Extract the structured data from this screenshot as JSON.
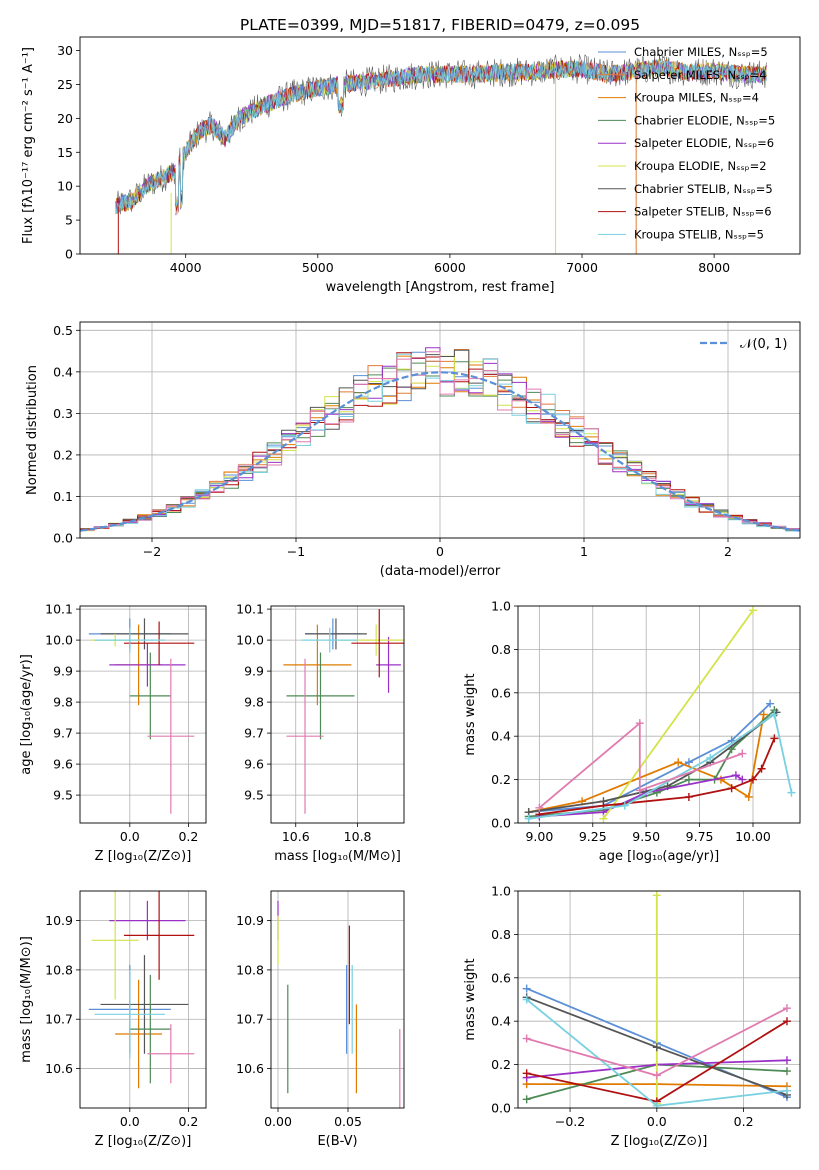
{
  "figure": {
    "title": "PLATE=0399, MJD=51817, FIBERID=0479, z=0.095"
  },
  "colors": {
    "Chabrier MILES": "#5b8fd6",
    "Salpeter MILES": "#e07b39",
    "Kroupa MILES": "#e07b00",
    "Chabrier ELODIE": "#4e8a55",
    "Salpeter ELODIE": "#9b30c8",
    "Kroupa ELODIE": "#d4e34a",
    "Chabrier STELIB": "#555555",
    "Salpeter STELIB": "#b01010",
    "Kroupa STELIB": "#78d0e0",
    "pink": "#e07bb0",
    "gauss": "#5b8fd6"
  },
  "chart_data": [
    {
      "id": "spectrum",
      "type": "line",
      "title": "PLATE=0399, MJD=51817, FIBERID=0479, z=0.095",
      "xlabel": "wavelength [Angstrom, rest frame]",
      "ylabel": "Flux [fλ10⁻¹⁷ erg cm⁻² s⁻¹ A⁻¹]",
      "xlim": [
        3200,
        8650
      ],
      "ylim": [
        0,
        32
      ],
      "xticks": [
        4000,
        5000,
        6000,
        7000,
        8000
      ],
      "yticks": [
        0,
        5,
        10,
        15,
        20,
        25,
        30
      ],
      "legend_position": "right",
      "legend": [
        {
          "label": "Chabrier MILES, Nₛₛₚ=5",
          "color": "#5b8fd6"
        },
        {
          "label": "Salpeter MILES, Nₛₛₚ=4",
          "color": "#e07b39"
        },
        {
          "label": "Kroupa MILES, Nₛₛₚ=4",
          "color": "#e07b00"
        },
        {
          "label": "Chabrier ELODIE, Nₛₛₚ=5",
          "color": "#4e8a55"
        },
        {
          "label": "Salpeter ELODIE, Nₛₛₚ=6",
          "color": "#9b30c8"
        },
        {
          "label": "Kroupa ELODIE, Nₛₛₚ=2",
          "color": "#d4e34a"
        },
        {
          "label": "Chabrier STELIB, Nₛₛₚ=5",
          "color": "#555555"
        },
        {
          "label": "Salpeter STELIB, Nₛₛₚ=6",
          "color": "#b01010"
        },
        {
          "label": "Kroupa STELIB, Nₛₛₚ=5",
          "color": "#78d0e0"
        }
      ],
      "continuum": {
        "x": [
          3470,
          3600,
          3700,
          3800,
          3900,
          4000,
          4100,
          4200,
          4300,
          4400,
          4600,
          4800,
          5000,
          5200,
          5400,
          5600,
          5800,
          6000,
          6200,
          6400,
          6600,
          6800,
          7000,
          7200,
          7400,
          7600,
          7800,
          8000,
          8200,
          8400
        ],
        "y": [
          7,
          8,
          10,
          11,
          12,
          15,
          18,
          19,
          17,
          20,
          22,
          23.5,
          24.5,
          25,
          25.5,
          26,
          26.5,
          26.5,
          26.5,
          26.8,
          26.8,
          27.2,
          27.3,
          26.5,
          27,
          27.5,
          26.8,
          27,
          26.5,
          26.5
        ]
      }
    },
    {
      "id": "residuals",
      "type": "histogram",
      "xlabel": "(data-model)/error",
      "ylabel": "Normed distribution",
      "xlim": [
        -2.5,
        2.5
      ],
      "ylim": [
        0,
        0.52
      ],
      "xticks": [
        -2,
        -1,
        0,
        1,
        2
      ],
      "yticks": [
        0.0,
        0.1,
        0.2,
        0.3,
        0.4,
        0.5
      ],
      "grid": true,
      "legend_position": "top-right",
      "legend": [
        {
          "label": "𝒩(0, 1)",
          "color": "#5b8fd6",
          "style": "dashed"
        }
      ],
      "bins_start": -2.5,
      "bin_width": 0.1
    },
    {
      "id": "age-vs-Z",
      "type": "errorbar",
      "xlabel": "Z [log₁₀(Z/Z⊙)]",
      "ylabel": "age  [log₁₀(age/yr)]",
      "xlim": [
        -0.17,
        0.26
      ],
      "ylim": [
        9.41,
        10.11
      ],
      "xticks": [
        0.0,
        0.2
      ],
      "yticks": [
        9.5,
        9.6,
        9.7,
        9.8,
        9.9,
        10.0,
        10.1
      ],
      "grid": true,
      "points": [
        {
          "x": 0.0,
          "y": 10.02,
          "xerr": 0.14,
          "yerr": 0.05,
          "color": "#5b8fd6"
        },
        {
          "x": 0.03,
          "y": 9.92,
          "xerr": 0.08,
          "yerr": 0.13,
          "color": "#e07b00"
        },
        {
          "x": 0.05,
          "y": 10.02,
          "xerr": 0.15,
          "yerr": 0.05,
          "color": "#555555"
        },
        {
          "x": 0.07,
          "y": 9.82,
          "xerr": 0.07,
          "yerr": 0.14,
          "color": "#4e8a55"
        },
        {
          "x": 0.06,
          "y": 9.92,
          "xerr": 0.13,
          "yerr": 0.07,
          "color": "#9b30c8"
        },
        {
          "x": -0.05,
          "y": 10.0,
          "xerr": 0.08,
          "yerr": 0.02,
          "color": "#d4e34a"
        },
        {
          "x": 0.1,
          "y": 9.99,
          "xerr": 0.12,
          "yerr": 0.07,
          "color": "#b01010"
        },
        {
          "x": 0.0,
          "y": 10.0,
          "xerr": 0.12,
          "yerr": 0.04,
          "color": "#78d0e0"
        },
        {
          "x": 0.14,
          "y": 9.69,
          "xerr": 0.08,
          "yerr": 0.25,
          "color": "#e07bb0"
        }
      ]
    },
    {
      "id": "age-vs-mass",
      "type": "errorbar",
      "xlabel": "mass [log₁₀(M/M⊙)]",
      "ylabel": "",
      "xlim": [
        10.52,
        10.95
      ],
      "ylim": [
        9.41,
        10.11
      ],
      "xticks": [
        10.6,
        10.8
      ],
      "yticks": [
        9.5,
        9.6,
        9.7,
        9.8,
        9.9,
        10.0,
        10.1
      ],
      "grid": true,
      "points": [
        {
          "x": 10.72,
          "y": 10.02,
          "xerr": 0.09,
          "yerr": 0.05,
          "color": "#5b8fd6"
        },
        {
          "x": 10.67,
          "y": 9.92,
          "xerr": 0.11,
          "yerr": 0.13,
          "color": "#e07b00"
        },
        {
          "x": 10.73,
          "y": 10.02,
          "xerr": 0.1,
          "yerr": 0.05,
          "color": "#555555"
        },
        {
          "x": 10.68,
          "y": 9.82,
          "xerr": 0.11,
          "yerr": 0.14,
          "color": "#4e8a55"
        },
        {
          "x": 10.9,
          "y": 9.92,
          "xerr": 0.04,
          "yerr": 0.09,
          "color": "#9b30c8"
        },
        {
          "x": 10.86,
          "y": 10.0,
          "xerr": 0.12,
          "yerr": 0.05,
          "color": "#d4e34a"
        },
        {
          "x": 10.87,
          "y": 9.99,
          "xerr": 0.09,
          "yerr": 0.11,
          "color": "#b01010"
        },
        {
          "x": 10.71,
          "y": 10.0,
          "xerr": 0.09,
          "yerr": 0.04,
          "color": "#78d0e0"
        },
        {
          "x": 10.63,
          "y": 9.69,
          "xerr": 0.06,
          "yerr": 0.25,
          "color": "#e07bb0"
        }
      ]
    },
    {
      "id": "weight-vs-age",
      "type": "line",
      "xlabel": "age  [log₁₀(age/yr)]",
      "ylabel": "mass weight",
      "xlim": [
        8.9,
        10.22
      ],
      "ylim": [
        0,
        1.0
      ],
      "xticks": [
        9.0,
        9.25,
        9.5,
        9.75,
        10.0
      ],
      "yticks": [
        0.0,
        0.2,
        0.4,
        0.6,
        0.8,
        1.0
      ],
      "grid": true,
      "series": [
        {
          "color": "#5b8fd6",
          "x": [
            8.95,
            9.3,
            9.7,
            9.9,
            10.08
          ],
          "y": [
            0.05,
            0.08,
            0.28,
            0.38,
            0.55
          ]
        },
        {
          "color": "#e07b00",
          "x": [
            8.95,
            9.2,
            9.65,
            9.85,
            9.98,
            10.05
          ],
          "y": [
            0.05,
            0.1,
            0.28,
            0.2,
            0.12,
            0.5
          ]
        },
        {
          "color": "#4e8a55",
          "x": [
            8.95,
            9.3,
            9.55,
            9.7,
            9.82,
            9.9,
            10.1
          ],
          "y": [
            0.03,
            0.06,
            0.14,
            0.2,
            0.2,
            0.34,
            0.52
          ]
        },
        {
          "color": "#9b30c8",
          "x": [
            9.0,
            9.3,
            9.5,
            9.92,
            9.95
          ],
          "y": [
            0.03,
            0.05,
            0.14,
            0.22,
            0.2
          ]
        },
        {
          "color": "#d4e34a",
          "x": [
            9.3,
            10.0
          ],
          "y": [
            0.02,
            0.98
          ]
        },
        {
          "color": "#555555",
          "x": [
            8.95,
            9.3,
            9.6,
            9.8,
            10.11
          ],
          "y": [
            0.05,
            0.1,
            0.17,
            0.28,
            0.51
          ]
        },
        {
          "color": "#b01010",
          "x": [
            9.0,
            9.3,
            9.7,
            9.9,
            10.0,
            10.04,
            10.1
          ],
          "y": [
            0.04,
            0.08,
            0.12,
            0.16,
            0.2,
            0.25,
            0.39
          ]
        },
        {
          "color": "#78d0e0",
          "x": [
            8.95,
            9.4,
            9.8,
            10.1,
            10.18
          ],
          "y": [
            0.02,
            0.08,
            0.3,
            0.5,
            0.14
          ]
        },
        {
          "color": "#e07bb0",
          "x": [
            9.0,
            9.47,
            9.47,
            9.95
          ],
          "y": [
            0.07,
            0.46,
            0.15,
            0.32
          ]
        }
      ]
    },
    {
      "id": "mass-vs-Z",
      "type": "errorbar",
      "xlabel": "Z [log₁₀(Z/Z⊙)]",
      "ylabel": "mass [log₁₀(M/M⊙)]",
      "xlim": [
        -0.17,
        0.26
      ],
      "ylim": [
        10.52,
        10.96
      ],
      "xticks": [
        0.0,
        0.2
      ],
      "yticks": [
        10.6,
        10.7,
        10.8,
        10.9
      ],
      "grid": true,
      "points": [
        {
          "x": 0.0,
          "y": 10.72,
          "xerr": 0.14,
          "yerr": 0.09,
          "color": "#5b8fd6"
        },
        {
          "x": 0.03,
          "y": 10.67,
          "xerr": 0.08,
          "yerr": 0.11,
          "color": "#e07b00"
        },
        {
          "x": 0.05,
          "y": 10.73,
          "xerr": 0.15,
          "yerr": 0.1,
          "color": "#555555"
        },
        {
          "x": 0.07,
          "y": 10.68,
          "xerr": 0.07,
          "yerr": 0.11,
          "color": "#4e8a55"
        },
        {
          "x": 0.06,
          "y": 10.9,
          "xerr": 0.13,
          "yerr": 0.04,
          "color": "#9b30c8"
        },
        {
          "x": -0.05,
          "y": 10.86,
          "xerr": 0.08,
          "yerr": 0.12,
          "color": "#d4e34a"
        },
        {
          "x": 0.1,
          "y": 10.87,
          "xerr": 0.12,
          "yerr": 0.09,
          "color": "#b01010"
        },
        {
          "x": 0.0,
          "y": 10.71,
          "xerr": 0.12,
          "yerr": 0.09,
          "color": "#78d0e0"
        },
        {
          "x": 0.14,
          "y": 10.63,
          "xerr": 0.08,
          "yerr": 0.06,
          "color": "#e07bb0"
        }
      ]
    },
    {
      "id": "mass-vs-ebv",
      "type": "errorbar",
      "xlabel": "E(B-V)",
      "ylabel": "",
      "xlim": [
        -0.005,
        0.09
      ],
      "ylim": [
        10.52,
        10.96
      ],
      "xticks": [
        0.0,
        0.05
      ],
      "yticks": [
        10.6,
        10.7,
        10.8,
        10.9
      ],
      "grid": true,
      "points": [
        {
          "x": 0.049,
          "y": 10.72,
          "xerr": 0,
          "yerr": 0.09,
          "color": "#5b8fd6"
        },
        {
          "x": 0.056,
          "y": 10.64,
          "xerr": 0,
          "yerr": 0.09,
          "color": "#e07b00"
        },
        {
          "x": 0.007,
          "y": 10.66,
          "xerr": 0,
          "yerr": 0.11,
          "color": "#4e8a55"
        },
        {
          "x": 0.0,
          "y": 10.9,
          "xerr": 0,
          "yerr": 0.04,
          "color": "#9b30c8"
        },
        {
          "x": 0.0,
          "y": 10.86,
          "xerr": 0,
          "yerr": 0.05,
          "color": "#d4e34a"
        },
        {
          "x": 0.051,
          "y": 10.79,
          "xerr": 0,
          "yerr": 0.1,
          "color": "#b01010"
        },
        {
          "x": 0.053,
          "y": 10.72,
          "xerr": 0,
          "yerr": 0.09,
          "color": "#78d0e0"
        },
        {
          "x": 0.087,
          "y": 10.6,
          "xerr": 0,
          "yerr": 0.08,
          "color": "#e07bb0"
        }
      ]
    },
    {
      "id": "weight-vs-Z",
      "type": "line",
      "xlabel": "Z [log₁₀(Z/Z⊙)]",
      "ylabel": "mass weight",
      "xlim": [
        -0.32,
        0.33
      ],
      "ylim": [
        0,
        1.0
      ],
      "xticks": [
        -0.2,
        0.0,
        0.2
      ],
      "yticks": [
        0.0,
        0.2,
        0.4,
        0.6,
        0.8,
        1.0
      ],
      "grid": true,
      "series": [
        {
          "color": "#5b8fd6",
          "x": [
            -0.3,
            0.0,
            0.3
          ],
          "y": [
            0.55,
            0.3,
            0.05
          ]
        },
        {
          "color": "#e07b00",
          "x": [
            -0.3,
            0.0,
            0.3
          ],
          "y": [
            0.11,
            0.11,
            0.1
          ]
        },
        {
          "color": "#4e8a55",
          "x": [
            -0.3,
            0.0,
            0.3
          ],
          "y": [
            0.04,
            0.2,
            0.17
          ]
        },
        {
          "color": "#9b30c8",
          "x": [
            -0.3,
            0.0,
            0.3
          ],
          "y": [
            0.14,
            0.2,
            0.22
          ]
        },
        {
          "color": "#d4e34a",
          "x": [
            0.0,
            0.0
          ],
          "y": [
            0.02,
            0.98
          ]
        },
        {
          "color": "#555555",
          "x": [
            -0.3,
            0.0,
            0.3
          ],
          "y": [
            0.51,
            0.28,
            0.06
          ]
        },
        {
          "color": "#b01010",
          "x": [
            -0.3,
            0.0,
            0.3
          ],
          "y": [
            0.16,
            0.03,
            0.4
          ]
        },
        {
          "color": "#78d0e0",
          "x": [
            -0.3,
            0.0,
            0.3
          ],
          "y": [
            0.5,
            0.01,
            0.08
          ]
        },
        {
          "color": "#e07bb0",
          "x": [
            -0.3,
            0.0,
            0.3
          ],
          "y": [
            0.32,
            0.15,
            0.46
          ]
        }
      ]
    }
  ]
}
